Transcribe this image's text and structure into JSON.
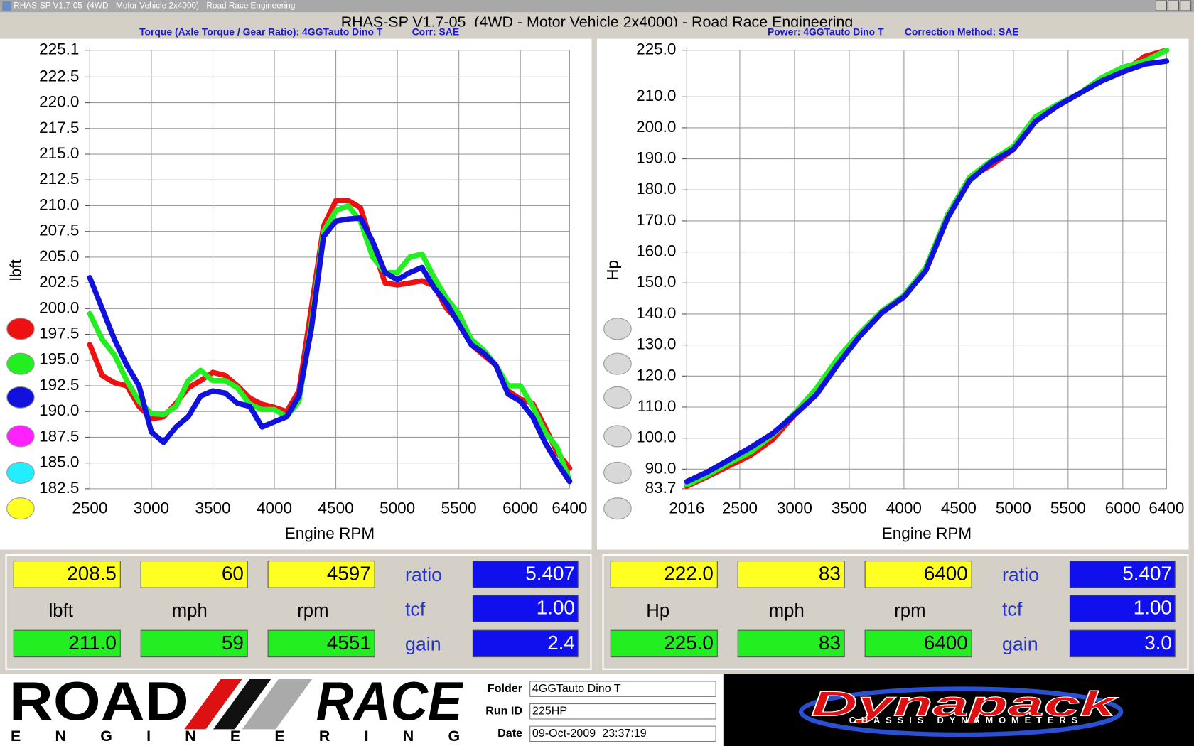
{
  "window": {
    "title": "RHAS-SP V1.7-05  (4WD - Motor Vehicle 2x4000) - Road Race Engineering"
  },
  "chart_data": [
    {
      "type": "line",
      "title": "Torque (Axle Torque / Gear Ratio): 4GGTauto Dino T",
      "correction": "Corr: SAE",
      "x_label": "Engine RPM",
      "y_label": "lbft",
      "grid": true,
      "x": [
        2500,
        2600,
        2700,
        2800,
        2900,
        3000,
        3100,
        3200,
        3300,
        3400,
        3500,
        3600,
        3700,
        3800,
        3900,
        4000,
        4100,
        4200,
        4300,
        4400,
        4500,
        4600,
        4700,
        4800,
        4900,
        5000,
        5100,
        5200,
        5300,
        5400,
        5500,
        5600,
        5700,
        5800,
        5900,
        6000,
        6100,
        6200,
        6300,
        6400
      ],
      "xlim": [
        2500,
        6400
      ],
      "xticks": [
        2500,
        3000,
        3500,
        4000,
        4500,
        5000,
        5500,
        6000,
        6400
      ],
      "ylim": [
        182.5,
        225.1
      ],
      "yticks": [
        225.1,
        222.5,
        {
          "value": 220,
          "label": "220.0"
        },
        217.5,
        {
          "value": 215,
          "label": "215.0"
        },
        212.5,
        {
          "value": 210,
          "label": "210.0"
        },
        207.5,
        {
          "value": 205,
          "label": "205.0"
        },
        202.5,
        {
          "value": 200,
          "label": "200.0"
        },
        197.5,
        {
          "value": 195,
          "label": "195.0"
        },
        192.5,
        {
          "value": 190,
          "label": "190.0"
        },
        187.5,
        {
          "value": 185,
          "label": "185.0"
        },
        182.5
      ],
      "series": [
        {
          "color": "#ee1111",
          "values": [
            196.5,
            193.5,
            192.8,
            192.5,
            190.5,
            189.3,
            189.5,
            190.8,
            192.3,
            193.0,
            193.8,
            193.5,
            192.5,
            191.3,
            190.7,
            190.4,
            190.0,
            192.0,
            200.0,
            208.0,
            210.5,
            210.5,
            209.8,
            206.0,
            202.5,
            202.3,
            202.5,
            202.7,
            202.2,
            200.0,
            198.8,
            196.5,
            195.5,
            194.5,
            192.0,
            191.2,
            190.8,
            188.5,
            186.0,
            184.5
          ]
        },
        {
          "color": "#22ee22",
          "values": [
            199.5,
            197.0,
            195.5,
            193.0,
            191.0,
            189.8,
            189.7,
            190.5,
            193.0,
            194.0,
            193.0,
            193.0,
            192.3,
            190.7,
            190.2,
            190.2,
            189.5,
            191.0,
            198.5,
            207.5,
            209.5,
            210.0,
            208.5,
            205.0,
            203.5,
            203.5,
            205.0,
            205.3,
            203.0,
            201.0,
            199.5,
            197.0,
            196.0,
            194.5,
            192.5,
            192.5,
            190.5,
            188.0,
            186.5,
            183.3
          ]
        },
        {
          "color": "#1111dd",
          "values": [
            203.0,
            200.0,
            197.0,
            194.5,
            192.5,
            188.0,
            187.0,
            188.5,
            189.5,
            191.5,
            192.0,
            191.8,
            190.8,
            190.5,
            188.5,
            189.0,
            189.5,
            191.5,
            198.0,
            207.0,
            208.5,
            208.7,
            208.8,
            206.5,
            203.5,
            202.8,
            203.5,
            204.0,
            202.0,
            200.5,
            198.5,
            196.5,
            195.7,
            194.5,
            191.7,
            191.0,
            189.5,
            187.0,
            185.0,
            183.2
          ]
        }
      ]
    },
    {
      "type": "line",
      "title": "Power: 4GGTauto Dino T",
      "correction": "Correction Method: SAE",
      "x_label": "Engine RPM",
      "y_label": "Hp",
      "grid": true,
      "x": [
        2016,
        2200,
        2400,
        2600,
        2800,
        3000,
        3200,
        3400,
        3600,
        3800,
        4000,
        4200,
        4400,
        4600,
        4800,
        5000,
        5200,
        5400,
        5600,
        5800,
        6000,
        6200,
        6400
      ],
      "xlim": [
        2016,
        6400
      ],
      "xticks": [
        2016,
        2500,
        3000,
        3500,
        4000,
        4500,
        5000,
        5500,
        6000,
        6400
      ],
      "ylim": [
        83.7,
        225
      ],
      "yticks": [
        {
          "value": 225,
          "label": "225.0"
        },
        {
          "value": 210,
          "label": "210.0"
        },
        {
          "value": 200,
          "label": "200.0"
        },
        {
          "value": 190,
          "label": "190.0"
        },
        {
          "value": 180,
          "label": "180.0"
        },
        {
          "value": 170,
          "label": "170.0"
        },
        {
          "value": 160,
          "label": "160.0"
        },
        {
          "value": 150,
          "label": "150.0"
        },
        {
          "value": 140,
          "label": "140.0"
        },
        {
          "value": 130,
          "label": "130.0"
        },
        {
          "value": 120,
          "label": "120.0"
        },
        {
          "value": 110,
          "label": "110.0"
        },
        {
          "value": 100,
          "label": "100.0"
        },
        {
          "value": 90,
          "label": "90.0"
        },
        83.7
      ],
      "series": [
        {
          "color": "#ee1111",
          "values": [
            84.5,
            87.5,
            91,
            94.5,
            99.5,
            107.5,
            114,
            125,
            133,
            141,
            145.5,
            155,
            172,
            184,
            188,
            193,
            202,
            207,
            211,
            215,
            218,
            223,
            225
          ]
        },
        {
          "color": "#22ee22",
          "values": [
            85,
            88,
            92,
            95.5,
            101,
            108,
            116,
            126,
            134,
            141,
            146,
            155,
            172,
            184,
            189.5,
            194,
            203.5,
            207.5,
            211,
            216,
            219.5,
            221.5,
            225
          ]
        },
        {
          "color": "#1111dd",
          "values": [
            86,
            89,
            93,
            97,
            101.5,
            107.5,
            114,
            124,
            133,
            140.5,
            145.5,
            154,
            171,
            183,
            189,
            193,
            202,
            207,
            211,
            215,
            218,
            220.5,
            221.5
          ]
        }
      ]
    }
  ],
  "readouts": [
    {
      "row1": [
        "208.5",
        "60",
        "4597"
      ],
      "units": [
        "lbft",
        "mph",
        "rpm"
      ],
      "row2": [
        "211.0",
        "59",
        "4551"
      ],
      "params": [
        {
          "label": "ratio",
          "value": "5.407"
        },
        {
          "label": "tcf",
          "value": "1.00"
        },
        {
          "label": "gain",
          "value": "2.4"
        }
      ]
    },
    {
      "row1": [
        "222.0",
        "83",
        "6400"
      ],
      "units": [
        "Hp",
        "mph",
        "rpm"
      ],
      "row2": [
        "225.0",
        "83",
        "6400"
      ],
      "params": [
        {
          "label": "ratio",
          "value": "5.407"
        },
        {
          "label": "tcf",
          "value": "1.00"
        },
        {
          "label": "gain",
          "value": "3.0"
        }
      ]
    }
  ],
  "info": [
    {
      "label": "Folder",
      "value": "4GGTauto Dino T"
    },
    {
      "label": "Run ID",
      "value": "225HP"
    },
    {
      "label": "Date",
      "value": "09-Oct-2009  23:37:19"
    }
  ],
  "logos": {
    "road": "ROAD",
    "race": "RACE",
    "engineering": "ENGINEERING",
    "dynapack": "Dynapack",
    "dynapack_tagline": "CHASSIS DYNAMOMETERS"
  }
}
